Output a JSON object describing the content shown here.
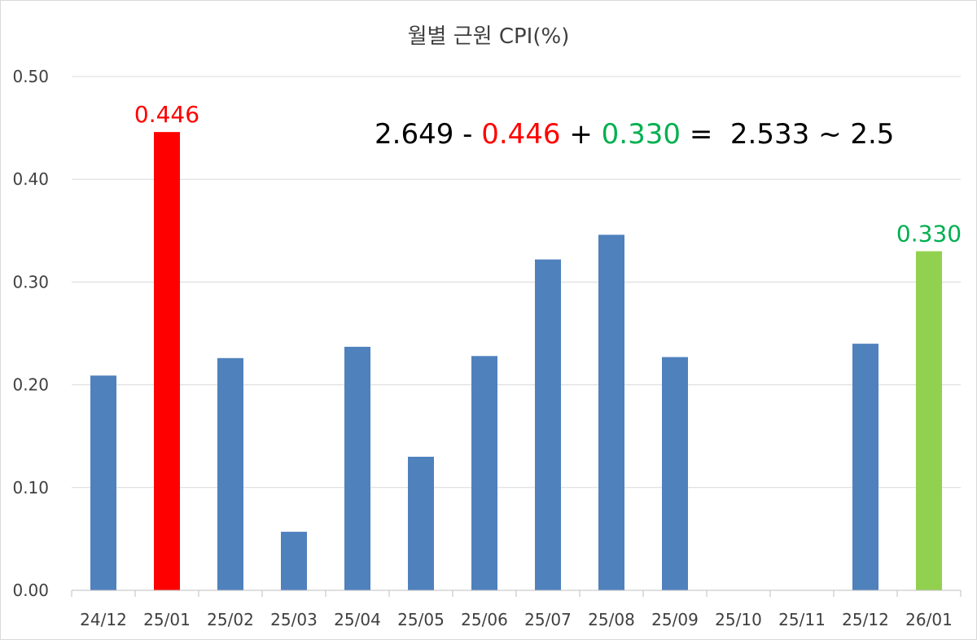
{
  "chart_data": {
    "type": "bar",
    "title": "월별 근원 CPI(%)",
    "xlabel": "",
    "ylabel": "",
    "categories": [
      "24/12",
      "25/01",
      "25/02",
      "25/03",
      "25/04",
      "25/05",
      "25/06",
      "25/07",
      "25/08",
      "25/09",
      "25/10",
      "25/11",
      "25/12",
      "26/01"
    ],
    "values": [
      0.209,
      0.446,
      0.226,
      0.057,
      0.237,
      0.13,
      0.228,
      0.322,
      0.346,
      0.227,
      null,
      null,
      0.24,
      0.33
    ],
    "ylim": [
      0,
      0.5
    ],
    "yticks": [
      "0.00",
      "0.10",
      "0.20",
      "0.30",
      "0.40",
      "0.50"
    ],
    "grid": true,
    "bar_colors": [
      "#4f81bd",
      "#ff0000",
      "#4f81bd",
      "#4f81bd",
      "#4f81bd",
      "#4f81bd",
      "#4f81bd",
      "#4f81bd",
      "#4f81bd",
      "#4f81bd",
      "#4f81bd",
      "#4f81bd",
      "#4f81bd",
      "#92d050"
    ],
    "data_labels": [
      {
        "index": 1,
        "text": "0.446",
        "color": "#ff0000"
      },
      {
        "index": 13,
        "text": "0.330",
        "color": "#00b050"
      }
    ],
    "annotation": {
      "parts": [
        {
          "text": "2.649 - ",
          "color": "#000000"
        },
        {
          "text": "0.446",
          "color": "#ff0000"
        },
        {
          "text": " + ",
          "color": "#000000"
        },
        {
          "text": "0.330",
          "color": "#00b050"
        },
        {
          "text": " =  2.533 ~ 2.5",
          "color": "#000000"
        }
      ]
    }
  }
}
